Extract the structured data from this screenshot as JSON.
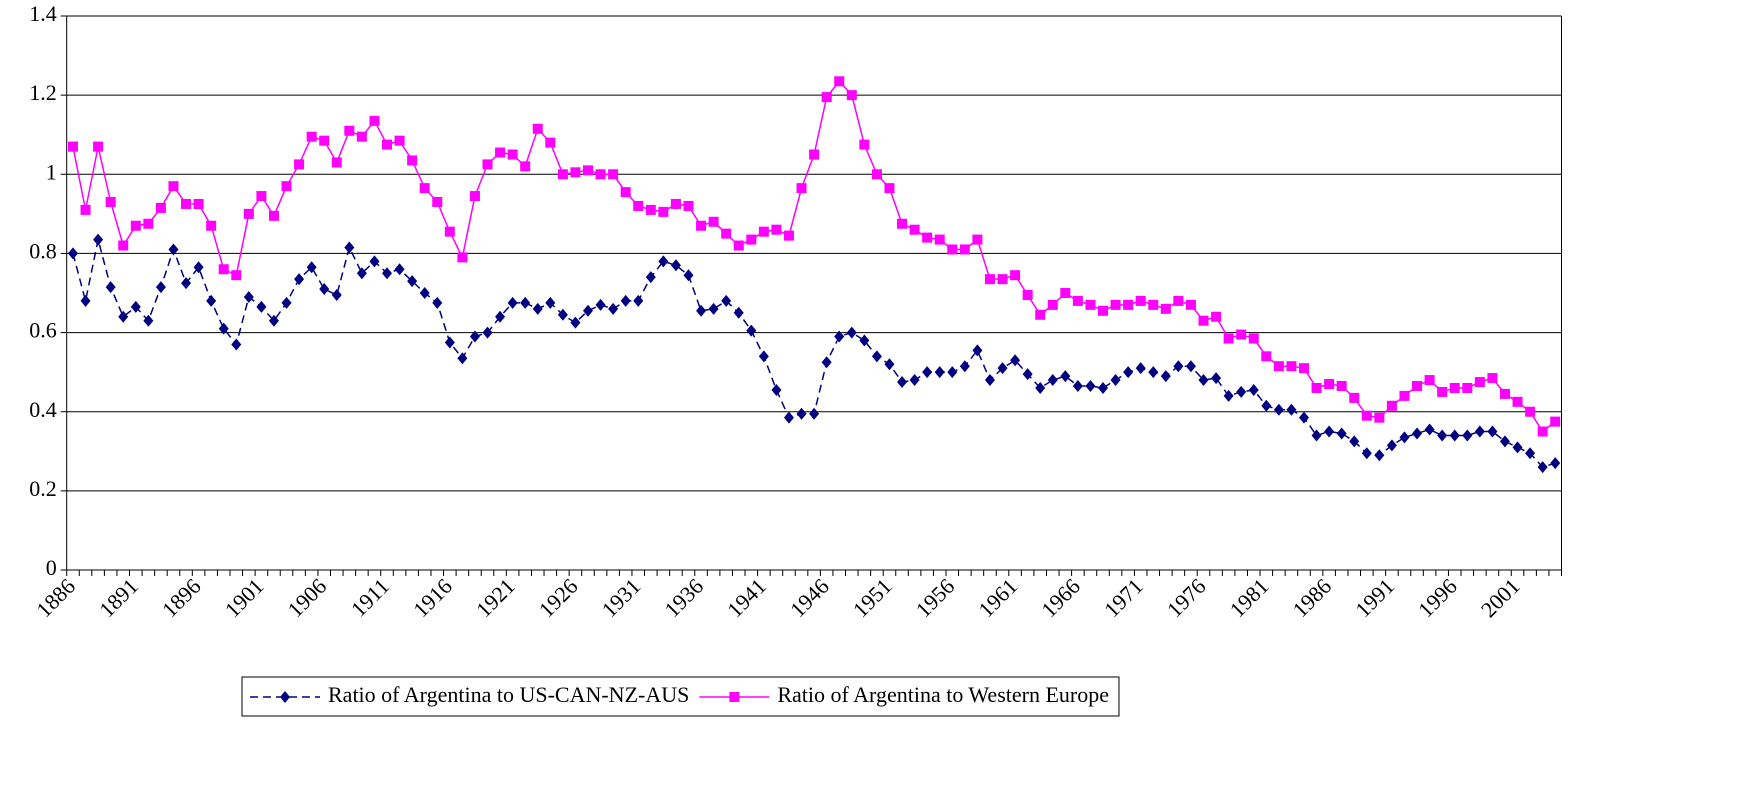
{
  "chart_data": {
    "type": "line",
    "categories": [
      "1886",
      null,
      null,
      null,
      null,
      "1891",
      null,
      null,
      null,
      null,
      "1896",
      null,
      null,
      null,
      null,
      "1901",
      null,
      null,
      null,
      null,
      "1906",
      null,
      null,
      null,
      null,
      "1911",
      null,
      null,
      null,
      null,
      "1916",
      null,
      null,
      null,
      null,
      "1921",
      null,
      null,
      null,
      null,
      "1926",
      null,
      null,
      null,
      null,
      "1931",
      null,
      null,
      null,
      null,
      "1936",
      null,
      null,
      null,
      null,
      "1941",
      null,
      null,
      null,
      null,
      "1946",
      null,
      null,
      null,
      null,
      "1951",
      null,
      null,
      null,
      null,
      "1956",
      null,
      null,
      null,
      null,
      "1961",
      null,
      null,
      null,
      null,
      "1966",
      null,
      null,
      null,
      null,
      "1971",
      null,
      null,
      null,
      null,
      "1976",
      null,
      null,
      null,
      null,
      "1981",
      null,
      null,
      null,
      null,
      "1986",
      null,
      null,
      null,
      null,
      "1991",
      null,
      null,
      null,
      null,
      "1996",
      null,
      null,
      null,
      null,
      "2001",
      null,
      null,
      null
    ],
    "series": [
      {
        "name": "Ratio of Argentina to US-CAN-NZ-AUS",
        "color": "#000080",
        "marker": "diamond",
        "dashed": true,
        "values": [
          0.8,
          0.68,
          0.835,
          0.715,
          0.64,
          0.665,
          0.63,
          0.715,
          0.81,
          0.725,
          0.765,
          0.68,
          0.61,
          0.57,
          0.69,
          0.665,
          0.63,
          0.675,
          0.735,
          0.765,
          0.71,
          0.695,
          0.815,
          0.75,
          0.78,
          0.75,
          0.76,
          0.73,
          0.7,
          0.675,
          0.575,
          0.535,
          0.59,
          0.6,
          0.64,
          0.675,
          0.675,
          0.66,
          0.675,
          0.645,
          0.625,
          0.655,
          0.67,
          0.66,
          0.68,
          0.68,
          0.74,
          0.78,
          0.77,
          0.745,
          0.655,
          0.66,
          0.68,
          0.65,
          0.605,
          0.54,
          0.455,
          0.385,
          0.395,
          0.395,
          0.525,
          0.59,
          0.6,
          0.58,
          0.54,
          0.52,
          0.475,
          0.48,
          0.5,
          0.5,
          0.5,
          0.515,
          0.555,
          0.48,
          0.51,
          0.53,
          0.495,
          0.46,
          0.48,
          0.49,
          0.465,
          0.465,
          0.46,
          0.48,
          0.5,
          0.51,
          0.5,
          0.49,
          0.515,
          0.515,
          0.48,
          0.485,
          0.44,
          0.45,
          0.455,
          0.415,
          0.405,
          0.405,
          0.385,
          0.34,
          0.35,
          0.345,
          0.325,
          0.295,
          0.29,
          0.315,
          0.335,
          0.345,
          0.355,
          0.34,
          0.34,
          0.34,
          0.35,
          0.35,
          0.325,
          0.31,
          0.295,
          0.26,
          0.27
        ]
      },
      {
        "name": "Ratio of Argentina to Western Europe",
        "color": "#ff00ff",
        "marker": "square",
        "dashed": false,
        "values": [
          1.07,
          0.91,
          1.07,
          0.93,
          0.82,
          0.87,
          0.875,
          0.915,
          0.97,
          0.925,
          0.925,
          0.87,
          0.76,
          0.745,
          0.9,
          0.945,
          0.895,
          0.97,
          1.025,
          1.095,
          1.085,
          1.03,
          1.11,
          1.095,
          1.135,
          1.075,
          1.085,
          1.035,
          0.965,
          0.93,
          0.855,
          0.79,
          0.945,
          1.025,
          1.055,
          1.05,
          1.02,
          1.115,
          1.08,
          1.0,
          1.005,
          1.01,
          1.0,
          1.0,
          0.955,
          0.92,
          0.91,
          0.905,
          0.925,
          0.92,
          0.87,
          0.88,
          0.85,
          0.82,
          0.835,
          0.855,
          0.86,
          0.845,
          0.965,
          1.05,
          1.195,
          1.235,
          1.2,
          1.075,
          1.0,
          0.965,
          0.875,
          0.86,
          0.84,
          0.835,
          0.81,
          0.81,
          0.835,
          0.735,
          0.735,
          0.745,
          0.695,
          0.645,
          0.67,
          0.7,
          0.68,
          0.67,
          0.655,
          0.67,
          0.67,
          0.68,
          0.67,
          0.66,
          0.68,
          0.67,
          0.63,
          0.64,
          0.585,
          0.595,
          0.585,
          0.54,
          0.515,
          0.515,
          0.51,
          0.46,
          0.47,
          0.465,
          0.435,
          0.39,
          0.385,
          0.415,
          0.44,
          0.465,
          0.48,
          0.45,
          0.46,
          0.46,
          0.475,
          0.485,
          0.445,
          0.425,
          0.4,
          0.35,
          0.375
        ]
      }
    ],
    "ylim": [
      0,
      1.4
    ],
    "yticks": [
      0,
      0.2,
      0.4,
      0.6,
      0.8,
      1,
      1.2,
      1.4
    ],
    "grid": true,
    "legend": "bottom"
  }
}
